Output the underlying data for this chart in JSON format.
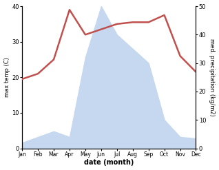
{
  "months": [
    "Jan",
    "Feb",
    "Mar",
    "Apr",
    "May",
    "Jun",
    "Jul",
    "Aug",
    "Sep",
    "Oct",
    "Nov",
    "Dec"
  ],
  "x": [
    1,
    2,
    3,
    4,
    5,
    6,
    7,
    8,
    9,
    10,
    11,
    12
  ],
  "temperature": [
    19.5,
    21.0,
    25.0,
    39.0,
    32.0,
    33.5,
    35.0,
    35.5,
    35.5,
    37.5,
    26.0,
    21.5
  ],
  "precipitation": [
    2.0,
    4.0,
    6.0,
    4.0,
    32.0,
    50.0,
    40.0,
    35.0,
    30.0,
    10.0,
    4.0,
    3.5
  ],
  "temp_color": "#c0504d",
  "precip_fill_color": "#c5d8f0",
  "background_color": "#ffffff",
  "ylabel_left": "max temp (C)",
  "ylabel_right": "med. precipitation (kg/m2)",
  "xlabel": "date (month)",
  "ylim_left": [
    0,
    40
  ],
  "ylim_right": [
    0,
    50
  ],
  "yticks_left": [
    0,
    10,
    20,
    30,
    40
  ],
  "yticks_right": [
    0,
    10,
    20,
    30,
    40,
    50
  ]
}
